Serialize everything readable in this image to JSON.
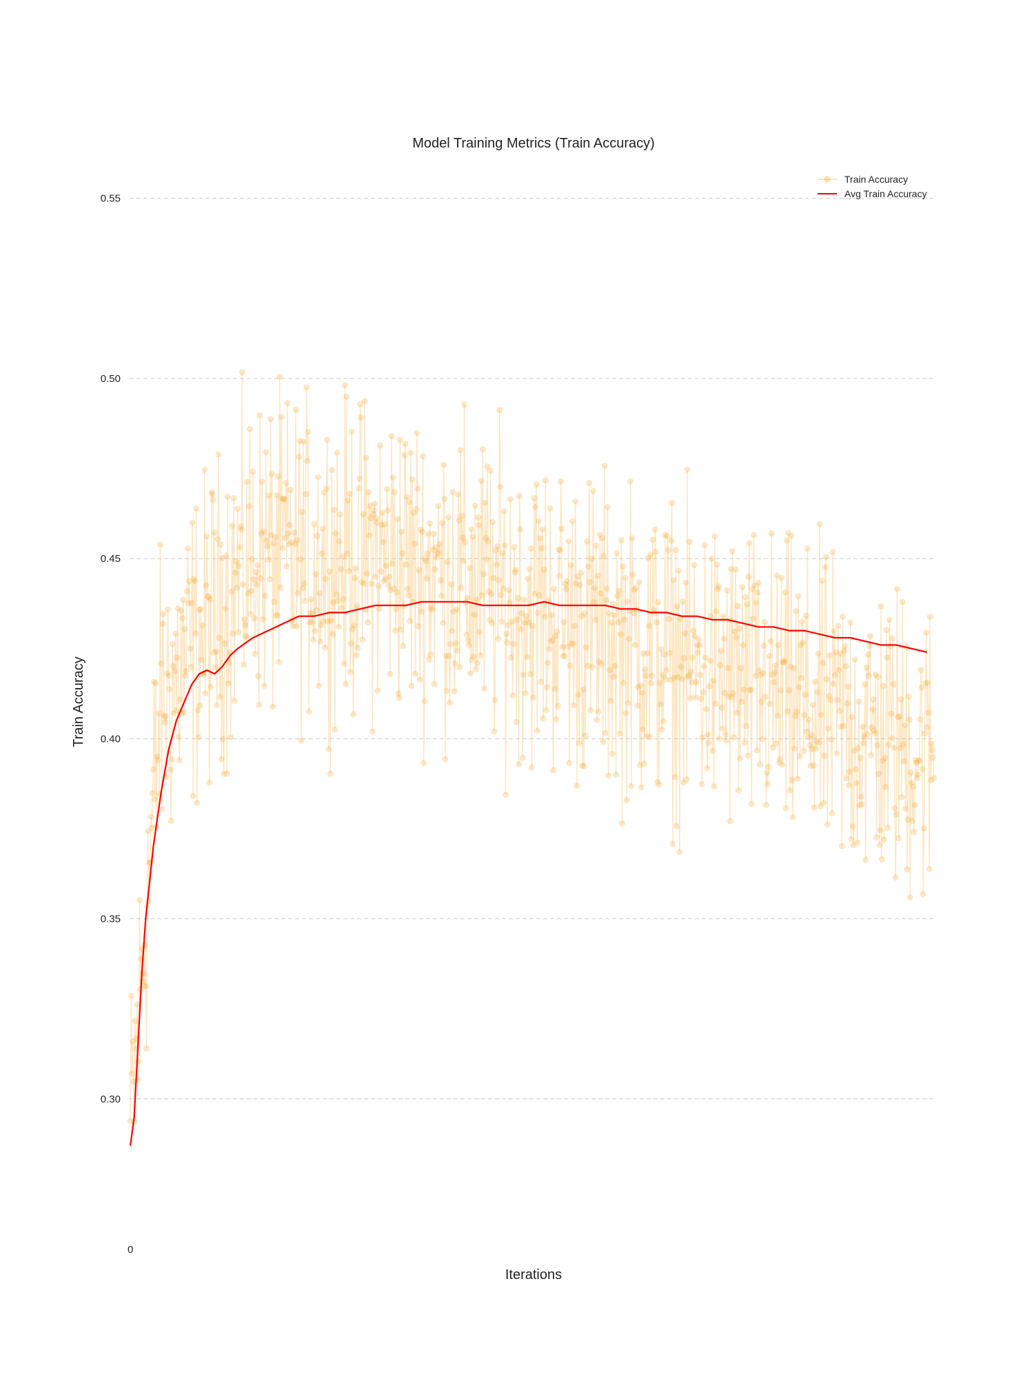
{
  "chart_data": {
    "type": "line",
    "title": "Model Training Metrics (Train Accuracy)",
    "xlabel": "Iterations",
    "ylabel": "Train Accuracy",
    "xlim": [
      -1,
      1051
    ],
    "ylim": [
      0.2655,
      0.5595
    ],
    "x_ticks": [
      {
        "value": 0,
        "label": "0"
      }
    ],
    "y_ticks": [
      {
        "value": 0.3,
        "label": "0.30"
      },
      {
        "value": 0.35,
        "label": "0.35"
      },
      {
        "value": 0.4,
        "label": "0.40"
      },
      {
        "value": 0.45,
        "label": "0.45"
      },
      {
        "value": 0.5,
        "label": "0.50"
      },
      {
        "value": 0.55,
        "label": "0.55"
      }
    ],
    "grid": "horizontal-dashed",
    "legend_position": "top-right",
    "series": [
      {
        "name": "Train Accuracy",
        "style": "line-with-markers",
        "color": "#f5b041",
        "opacity": 0.3,
        "x_start": 0,
        "x_step": 1,
        "y_approx_trend": {
          "start": 0.29,
          "peak": 0.45,
          "peak_at": 350,
          "end": 0.395,
          "noise_band": 0.03
        },
        "y_range_observed": [
          0.28,
          0.51
        ]
      },
      {
        "name": "Avg Train Accuracy",
        "style": "line",
        "color": "#ff0000",
        "x": [
          0,
          5,
          10,
          15,
          20,
          25,
          30,
          40,
          50,
          60,
          70,
          80,
          90,
          100,
          110,
          120,
          130,
          140,
          160,
          180,
          200,
          220,
          240,
          260,
          280,
          300,
          320,
          340,
          360,
          380,
          400,
          420,
          440,
          460,
          480,
          500,
          520,
          540,
          560,
          580,
          600,
          620,
          640,
          660,
          680,
          700,
          720,
          740,
          760,
          780,
          800,
          820,
          840,
          860,
          880,
          900,
          920,
          940,
          960,
          980,
          1000,
          1020,
          1040
        ],
        "y": [
          0.287,
          0.295,
          0.315,
          0.335,
          0.35,
          0.36,
          0.37,
          0.385,
          0.397,
          0.405,
          0.41,
          0.415,
          0.418,
          0.419,
          0.418,
          0.42,
          0.423,
          0.425,
          0.428,
          0.43,
          0.432,
          0.434,
          0.434,
          0.435,
          0.435,
          0.436,
          0.437,
          0.437,
          0.437,
          0.438,
          0.438,
          0.438,
          0.438,
          0.437,
          0.437,
          0.437,
          0.437,
          0.438,
          0.437,
          0.437,
          0.437,
          0.437,
          0.436,
          0.436,
          0.435,
          0.435,
          0.434,
          0.434,
          0.433,
          0.433,
          0.432,
          0.431,
          0.431,
          0.43,
          0.43,
          0.429,
          0.428,
          0.428,
          0.427,
          0.426,
          0.426,
          0.425,
          0.424
        ]
      }
    ]
  }
}
